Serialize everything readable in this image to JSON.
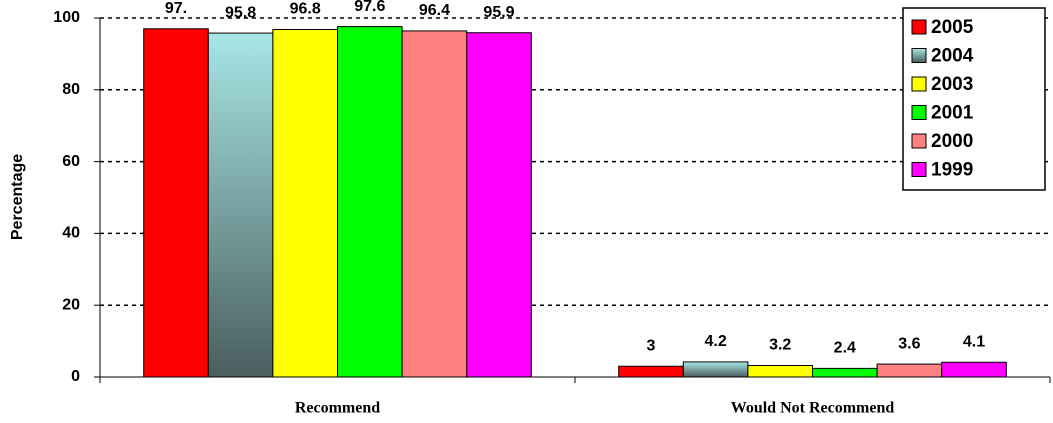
{
  "chart_data": {
    "type": "bar",
    "y_label": "Percentage",
    "categories": [
      "Recommend",
      "Would Not Recommend"
    ],
    "series": [
      {
        "name": "2005",
        "color": "#ff0000",
        "values": [
          97,
          3
        ],
        "value_labels": [
          "97.",
          "3"
        ]
      },
      {
        "name": "2004",
        "color": "#a8e6e6",
        "values": [
          95.8,
          4.2
        ]
      },
      {
        "name": "2003",
        "color": "#ffff00",
        "values": [
          96.8,
          3.2
        ]
      },
      {
        "name": "2001",
        "color": "#00ff00",
        "values": [
          97.6,
          2.4
        ]
      },
      {
        "name": "2000",
        "color": "#ff8080",
        "values": [
          96.4,
          3.6
        ]
      },
      {
        "name": "1999",
        "color": "#ff00ff",
        "values": [
          95.9,
          4.1
        ]
      }
    ],
    "ylim": [
      0,
      100
    ],
    "yticks": [
      0,
      20,
      40,
      60,
      80,
      100
    ],
    "grid": true,
    "legend": "top-right"
  }
}
